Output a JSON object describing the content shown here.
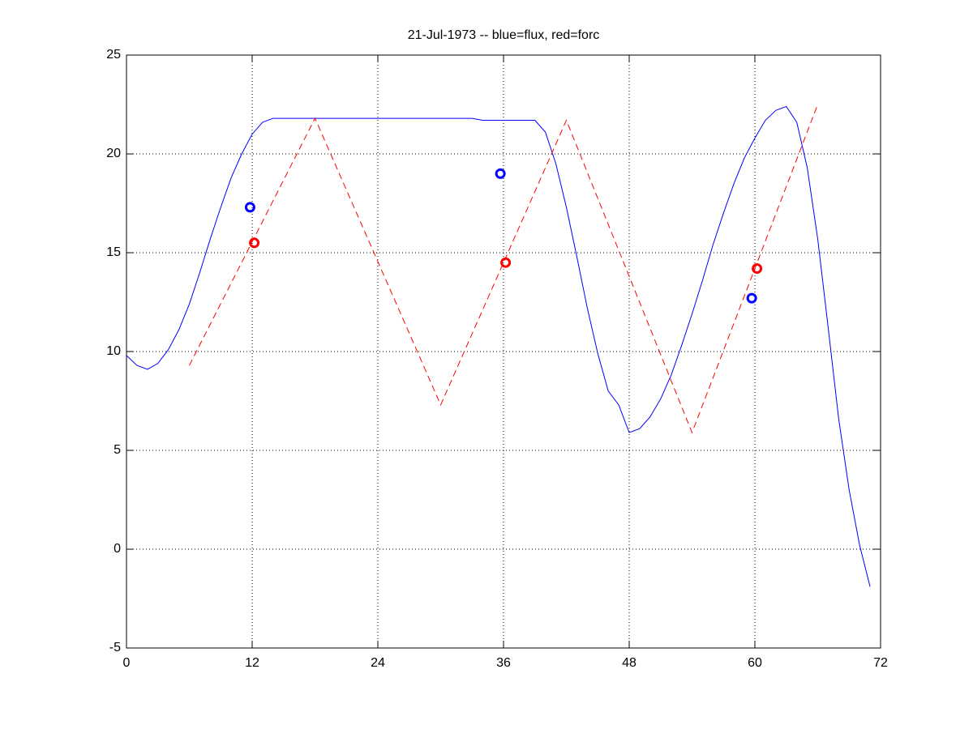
{
  "chart_data": {
    "type": "line",
    "title": "21-Jul-1973 -- blue=flux, red=forc",
    "xlim": [
      0,
      72
    ],
    "xticks": [
      0,
      12,
      24,
      36,
      48,
      60,
      72
    ],
    "ylim": [
      -5,
      25
    ],
    "yticks": [
      -5,
      0,
      5,
      10,
      15,
      20,
      25
    ],
    "grid": true,
    "series": [
      {
        "color": "#0000ff",
        "style": "solid",
        "marker": "none",
        "x": [
          0,
          1,
          2,
          3,
          4,
          5,
          6,
          7,
          8,
          9,
          10,
          11,
          12,
          13,
          14,
          15,
          16,
          17,
          18,
          19,
          20,
          21,
          22,
          23,
          24,
          25,
          26,
          27,
          28,
          29,
          30,
          31,
          32,
          33,
          34,
          35,
          36,
          37,
          38,
          39,
          40,
          41,
          42,
          43,
          44,
          45,
          46,
          47,
          48,
          49,
          50,
          51,
          52,
          53,
          54,
          55,
          56,
          57,
          58,
          59,
          60,
          61,
          62,
          63,
          64,
          65,
          66,
          67,
          68,
          69,
          70,
          71
        ],
        "values": [
          9.8,
          9.3,
          9.1,
          9.4,
          10.1,
          11.1,
          12.4,
          14.0,
          15.7,
          17.3,
          18.8,
          20.0,
          21.0,
          21.6,
          21.8,
          21.8,
          21.8,
          21.8,
          21.8,
          21.8,
          21.8,
          21.8,
          21.8,
          21.8,
          21.8,
          21.8,
          21.8,
          21.8,
          21.8,
          21.8,
          21.8,
          21.8,
          21.8,
          21.8,
          21.7,
          21.7,
          21.7,
          21.7,
          21.7,
          21.7,
          21.1,
          19.5,
          17.3,
          14.8,
          12.2,
          9.9,
          8.0,
          7.3,
          5.9,
          6.1,
          6.7,
          7.6,
          8.8,
          10.3,
          11.9,
          13.6,
          15.4,
          17.0,
          18.5,
          19.8,
          20.8,
          21.7,
          22.2,
          22.4,
          21.6,
          19.3,
          15.7,
          11.2,
          6.6,
          3.0,
          0.2,
          -1.9
        ]
      },
      {
        "color": "#ff0000",
        "style": "dashed",
        "marker": "none",
        "x": [
          6,
          18,
          30,
          42,
          54,
          66
        ],
        "values": [
          9.3,
          21.8,
          7.3,
          21.7,
          5.9,
          22.5
        ]
      },
      {
        "color": "#0000ff",
        "style": "none",
        "marker": "circle",
        "x": [
          11.8,
          35.7,
          59.7
        ],
        "values": [
          17.3,
          19.0,
          12.7
        ]
      },
      {
        "color": "#ff0000",
        "style": "none",
        "marker": "circle",
        "x": [
          12.2,
          36.2,
          60.2
        ],
        "values": [
          15.5,
          14.5,
          14.2
        ]
      }
    ]
  }
}
